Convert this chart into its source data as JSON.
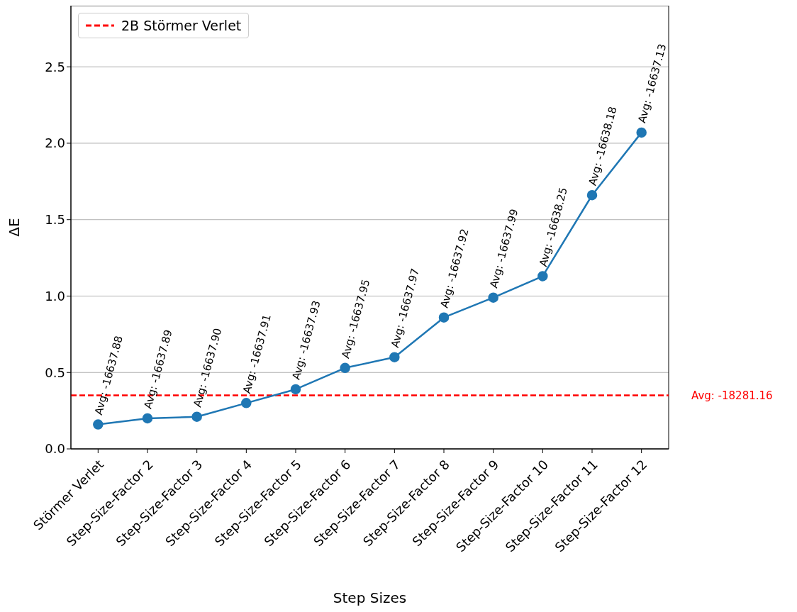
{
  "chart_data": {
    "type": "line",
    "xlabel": "Step Sizes",
    "ylabel": "ΔE",
    "categories": [
      "Störmer Verlet",
      "Step-Size-Factor 2",
      "Step-Size-Factor 3",
      "Step-Size-Factor 4",
      "Step-Size-Factor 5",
      "Step-Size-Factor 6",
      "Step-Size-Factor 7",
      "Step-Size-Factor 8",
      "Step-Size-Factor 9",
      "Step-Size-Factor 10",
      "Step-Size-Factor 11",
      "Step-Size-Factor 12"
    ],
    "series": [
      {
        "color": "#1f77b4",
        "values": [
          0.16,
          0.2,
          0.21,
          0.3,
          0.39,
          0.53,
          0.6,
          0.86,
          0.99,
          1.13,
          1.66,
          2.07
        ]
      }
    ],
    "ylim": [
      0,
      2.9
    ],
    "yticks": [
      {
        "value": 0,
        "label": "0.0"
      },
      {
        "value": 0.5,
        "label": "0.5"
      },
      {
        "value": 1,
        "label": "1.0"
      },
      {
        "value": 1.5,
        "label": "1.5"
      },
      {
        "value": 2,
        "label": "2.0"
      },
      {
        "value": 2.5,
        "label": "2.5"
      }
    ],
    "grid": "y",
    "legend": "top left",
    "marker": "circle",
    "line_style": "solid",
    "ref_lines": [
      {
        "axis": "y",
        "value": 0.35,
        "label": "2B Störmer Verlet",
        "color": "#ff0000",
        "line_style": "dashed"
      }
    ],
    "annotations": [
      {
        "text": "Avg: -16637.88",
        "x": "Störmer Verlet",
        "y": 0.16
      },
      {
        "text": "Avg: -16637.89",
        "x": "Step-Size-Factor 2",
        "y": 0.2
      },
      {
        "text": "Avg: -16637.90",
        "x": "Step-Size-Factor 3",
        "y": 0.21
      },
      {
        "text": "Avg: -16637.91",
        "x": "Step-Size-Factor 4",
        "y": 0.3
      },
      {
        "text": "Avg: -16637.93",
        "x": "Step-Size-Factor 5",
        "y": 0.39
      },
      {
        "text": "Avg: -16637.95",
        "x": "Step-Size-Factor 6",
        "y": 0.53
      },
      {
        "text": "Avg: -16637.97",
        "x": "Step-Size-Factor 7",
        "y": 0.6
      },
      {
        "text": "Avg: -16637.92",
        "x": "Step-Size-Factor 8",
        "y": 0.86
      },
      {
        "text": "Avg: -16637.99",
        "x": "Step-Size-Factor 9",
        "y": 0.99
      },
      {
        "text": "Avg: -16638.25",
        "x": "Step-Size-Factor 10",
        "y": 1.13
      },
      {
        "text": "Avg: -16638.18",
        "x": "Step-Size-Factor 11",
        "y": 1.66
      },
      {
        "text": "Avg: -16637.13",
        "x": "Step-Size-Factor 12",
        "y": 2.07
      },
      "Avg: -18281.16"
    ]
  }
}
